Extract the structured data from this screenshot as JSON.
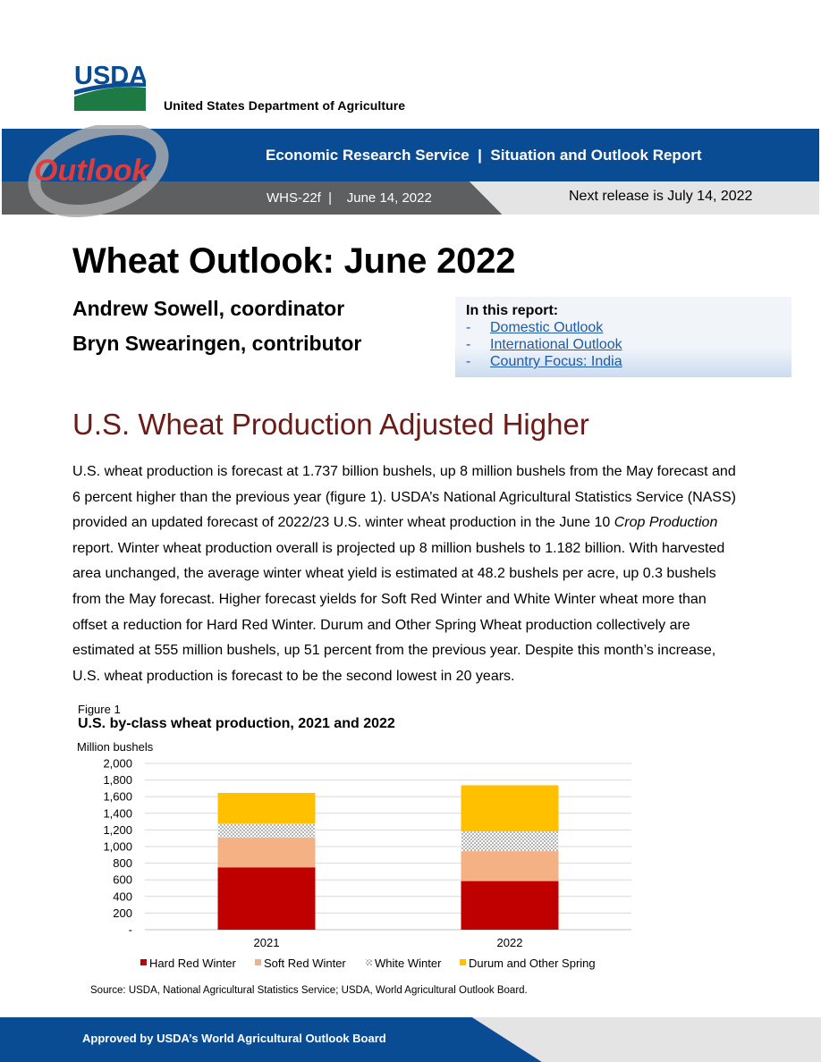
{
  "header": {
    "logo_text": "USDA",
    "department": "United States Department of Agriculture",
    "banner_title": "Economic Research Service  |  Situation and Outlook Report",
    "report_id": "WHS-22f  |    June 14, 2022",
    "next_release": "Next release is July 14, 2022",
    "outlook_logo_text": "Outlook",
    "colors": {
      "banner_blue": "#0a4c93",
      "banner_gray": "#5e5f61",
      "usda_green": "#1c7a42",
      "usda_blue": "#0a4c93"
    }
  },
  "title": "Wheat Outlook: June 2022",
  "authors": [
    "Andrew Sowell, coordinator",
    "Bryn Swearingen, contributor"
  ],
  "toc": {
    "heading": "In this report:",
    "items": [
      {
        "dash": "-",
        "label": "Domestic Outlook"
      },
      {
        "dash": "-",
        "label": "International Outlook"
      },
      {
        "dash": "-",
        "label": "Country Focus: India"
      }
    ]
  },
  "section": {
    "heading": "U.S. Wheat Production Adjusted Higher",
    "body_1": "U.S. wheat production is forecast at 1.737 billion bushels, up 8 million bushels from the May forecast and 6 percent higher than the previous year (figure 1). USDA’s National Agricultural Statistics Service (NASS) provided an updated forecast of 2022/23 U.S. winter wheat production in the June 10 ",
    "body_italic": "Crop Production",
    "body_2": " report. Winter wheat production overall is projected up 8 million bushels to 1.182 billion. With harvested area unchanged, the average winter wheat yield is estimated at 48.2 bushels per acre, up 0.3 bushels from the May forecast. Higher forecast yields for Soft Red Winter and White Winter wheat more than offset a reduction for Hard Red Winter. Durum and Other Spring Wheat production collectively are estimated at 555 million bushels, up 51 percent from the previous year. Despite this month’s increase, U.S. wheat production is forecast to be the second lowest in 20 years."
  },
  "figure": {
    "label": "Figure 1",
    "title": "U.S. by-class wheat production, 2021 and 2022",
    "unit": "Million bushels",
    "source": "Source: USDA, National Agricultural Statistics Service; USDA, World Agricultural Outlook Board."
  },
  "chart_data": {
    "type": "bar",
    "stacked": true,
    "title": "U.S. by-class wheat production, 2021 and 2022",
    "xlabel": "",
    "ylabel": "Million bushels",
    "ylim": [
      0,
      2000
    ],
    "y_ticks": [
      0,
      200,
      400,
      600,
      800,
      1000,
      1200,
      1400,
      1600,
      1800,
      2000
    ],
    "y_tick_labels": [
      "-",
      "200",
      "400",
      "600",
      "800",
      "1,000",
      "1,200",
      "1,400",
      "1,600",
      "1,800",
      "2,000"
    ],
    "categories": [
      "2021",
      "2022"
    ],
    "series": [
      {
        "name": "Hard Red Winter",
        "values": [
          750,
          585
        ],
        "color": "#c00000"
      },
      {
        "name": "Soft Red Winter",
        "values": [
          360,
          360
        ],
        "color": "#f4b183"
      },
      {
        "name": "White Winter",
        "values": [
          165,
          237
        ],
        "color": "#bfbfbf",
        "pattern": "dotted"
      },
      {
        "name": "Durum and Other Spring",
        "values": [
          371,
          555
        ],
        "color": "#ffc000"
      }
    ],
    "grid": true,
    "legend": "bottom"
  },
  "footer": {
    "text": "Approved by USDA’s World Agricultural Outlook Board"
  }
}
